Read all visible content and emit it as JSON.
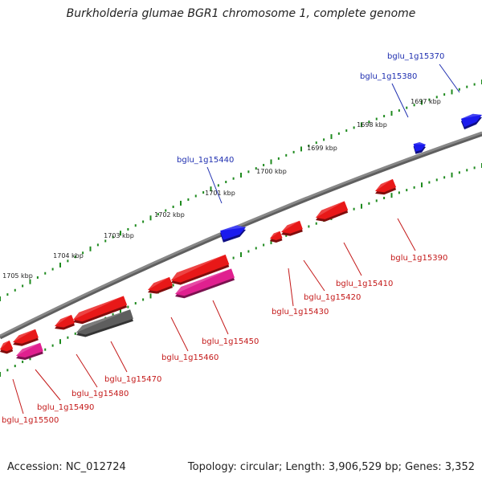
{
  "title": "Burkholderia glumae BGR1 chromosome 1, complete genome",
  "footer": {
    "accession": "Accession: NC_012724",
    "summary": "Topology: circular; Length: 3,906,529 bp; Genes: 3,352"
  },
  "ticks": [
    "1697 kbp",
    "1698 kbp",
    "1699 kbp",
    "1700 kbp",
    "1701 kbp",
    "1702 kbp",
    "1703 kbp",
    "1704 kbp",
    "1705 kbp"
  ],
  "genes": {
    "forward": [
      "bglu_1g15370",
      "bglu_1g15380",
      "bglu_1g15440"
    ],
    "reverse": [
      "bglu_1g15390",
      "bglu_1g15410",
      "bglu_1g15420",
      "bglu_1g15430",
      "bglu_1g15450",
      "bglu_1g15460",
      "bglu_1g15470",
      "bglu_1g15480",
      "bglu_1g15490",
      "bglu_1g15500"
    ]
  },
  "colors": {
    "forward_gene": "#1a1aee",
    "reverse_gene": "#e81818",
    "rna_gene": "#e0208f",
    "pseudo_gene": "#5e5e5e",
    "backbone": "#888888",
    "tick_dots": "#1e8a1e",
    "label_blue": "#1f2fb0",
    "label_red": "#c41a1a"
  }
}
